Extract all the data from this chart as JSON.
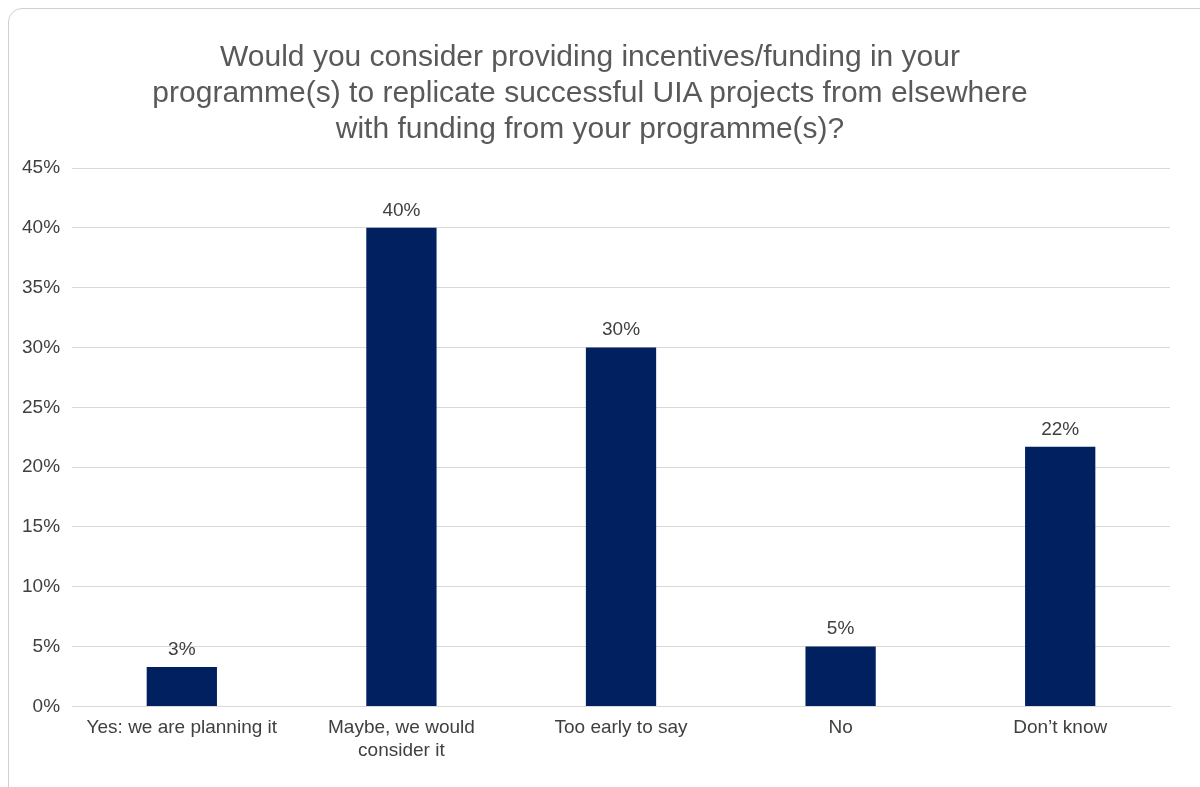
{
  "chart_data": {
    "type": "bar",
    "title": "Would you consider providing incentives/funding in your programme(s) to replicate successful UIA projects from elsewhere with funding from your programme(s)?",
    "categories": [
      "Yes: we are planning it",
      "Maybe, we would consider it",
      "Too early to say",
      "No",
      "Don’t know"
    ],
    "values": [
      3.3,
      40,
      30,
      5,
      21.7
    ],
    "value_labels": [
      "3%",
      "40%",
      "30%",
      "5%",
      "22%"
    ],
    "color": "#002060",
    "ylim": [
      0,
      45
    ],
    "yticks": [
      {
        "value": 0,
        "label": "0%"
      },
      {
        "value": 5,
        "label": "5%"
      },
      {
        "value": 10,
        "label": "10%"
      },
      {
        "value": 15,
        "label": "15%"
      },
      {
        "value": 20,
        "label": "20%"
      },
      {
        "value": 25,
        "label": "25%"
      },
      {
        "value": 30,
        "label": "30%"
      },
      {
        "value": 35,
        "label": "35%"
      },
      {
        "value": 40,
        "label": "40%"
      },
      {
        "value": 45,
        "label": "45%"
      }
    ],
    "grid": "y",
    "legend": false
  }
}
